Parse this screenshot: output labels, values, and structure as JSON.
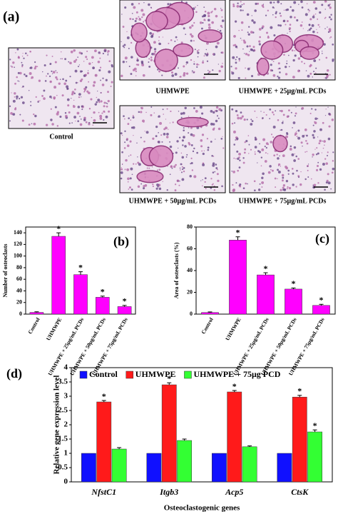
{
  "figure": {
    "label": "(a)",
    "captions": [
      "Control",
      "UHMWPE",
      "UHMWPE + 25μg/mL PCDs",
      "UHMWPE + 50μg/mL PCDs",
      "UHMWPE + 75μg/mL PCDs"
    ]
  },
  "chart_data": [
    {
      "type": "bar",
      "label": "(b)",
      "ylabel": "Number of osteoclasts",
      "categories": [
        "Control",
        "UHMWPE",
        "UHMWPE + 25μg/mL PCDs",
        "UHMWPE + 50μg/mL PCDs",
        "UHMWPE + 75μg/mL PCDs"
      ],
      "values": [
        3,
        134,
        68,
        29,
        13
      ],
      "errors": [
        1,
        6,
        5,
        2,
        2
      ],
      "markers": [
        null,
        "*",
        "*",
        "*",
        "*"
      ],
      "color": "#ff00ff",
      "ylim": [
        0,
        150
      ],
      "yticks": [
        0,
        20,
        40,
        60,
        80,
        100,
        120,
        140
      ]
    },
    {
      "type": "bar",
      "label": "(c)",
      "ylabel": "Area of osteoclasts (%)",
      "categories": [
        "Control",
        "UHMWPE",
        "UHMWPE + 25μg/mL PCDs",
        "UHMWPE + 50μg/mL PCDs",
        "UHMWPE + 75μg/mL PCDs"
      ],
      "values": [
        1.5,
        68,
        36,
        23,
        8
      ],
      "errors": [
        0.5,
        3,
        2,
        1,
        1
      ],
      "markers": [
        null,
        "*",
        "*",
        "*",
        "*"
      ],
      "color": "#ff00ff",
      "ylim": [
        0,
        80
      ],
      "yticks": [
        0,
        20,
        40,
        60,
        80
      ]
    },
    {
      "type": "bar",
      "label": "(d)",
      "ylabel": "Relative gene expression level",
      "xlabel": "Osteoclastogenic genes",
      "categories": [
        "NfstC1",
        "Itgb3",
        "Acp5",
        "CtsK"
      ],
      "series": [
        {
          "name": "Control",
          "color": "#1010ff",
          "values": [
            1,
            1,
            1,
            1
          ]
        },
        {
          "name": "UHMWPE",
          "color": "#ff1a1a",
          "values": [
            2.8,
            3.4,
            3.15,
            2.97
          ],
          "errors": [
            0.05,
            0.07,
            0.05,
            0.06
          ],
          "markers": [
            "*",
            "*",
            "*",
            "*"
          ]
        },
        {
          "name": "UHMWPE + 75μg PCD",
          "color": "#33ff33",
          "values": [
            1.15,
            1.45,
            1.23,
            1.75
          ],
          "errors": [
            0.05,
            0.05,
            0.03,
            0.07
          ],
          "markers": [
            null,
            null,
            null,
            "*"
          ]
        }
      ],
      "ylim": [
        0,
        4
      ],
      "yticks": [
        0,
        0.5,
        1,
        1.5,
        2,
        2.5,
        3,
        3.5,
        4
      ],
      "legend": "top"
    }
  ]
}
